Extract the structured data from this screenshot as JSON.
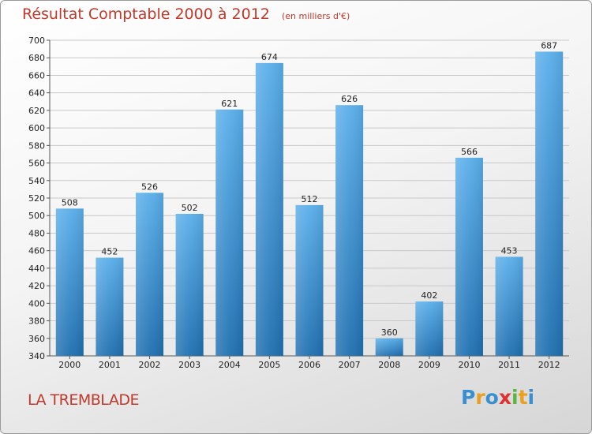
{
  "chart_data": {
    "type": "bar",
    "title": "Résultat Comptable 2000 à 2012",
    "subtitle": "(en milliers d'€)",
    "categories": [
      "2000",
      "2001",
      "2002",
      "2003",
      "2004",
      "2005",
      "2006",
      "2007",
      "2008",
      "2009",
      "2010",
      "2011",
      "2012"
    ],
    "values": [
      508,
      452,
      526,
      502,
      621,
      674,
      512,
      626,
      360,
      402,
      566,
      453,
      687
    ],
    "ylim": [
      340,
      700
    ],
    "yticks": [
      340,
      360,
      380,
      400,
      420,
      440,
      460,
      480,
      500,
      520,
      540,
      560,
      580,
      600,
      620,
      640,
      660,
      680,
      700
    ],
    "grid": true,
    "bar_color": "#3d95d6",
    "grid_color": "#c8c8c8"
  },
  "footer": {
    "commune": "LA TREMBLADE",
    "logo_letters": [
      "P",
      "r",
      "o",
      "x",
      "i",
      "t",
      "i"
    ],
    "logo_colors": [
      "#3a8fd1",
      "#e8a020",
      "#3a8fd1",
      "#e03030",
      "#59b544",
      "#e8a020",
      "#3a8fd1"
    ]
  }
}
